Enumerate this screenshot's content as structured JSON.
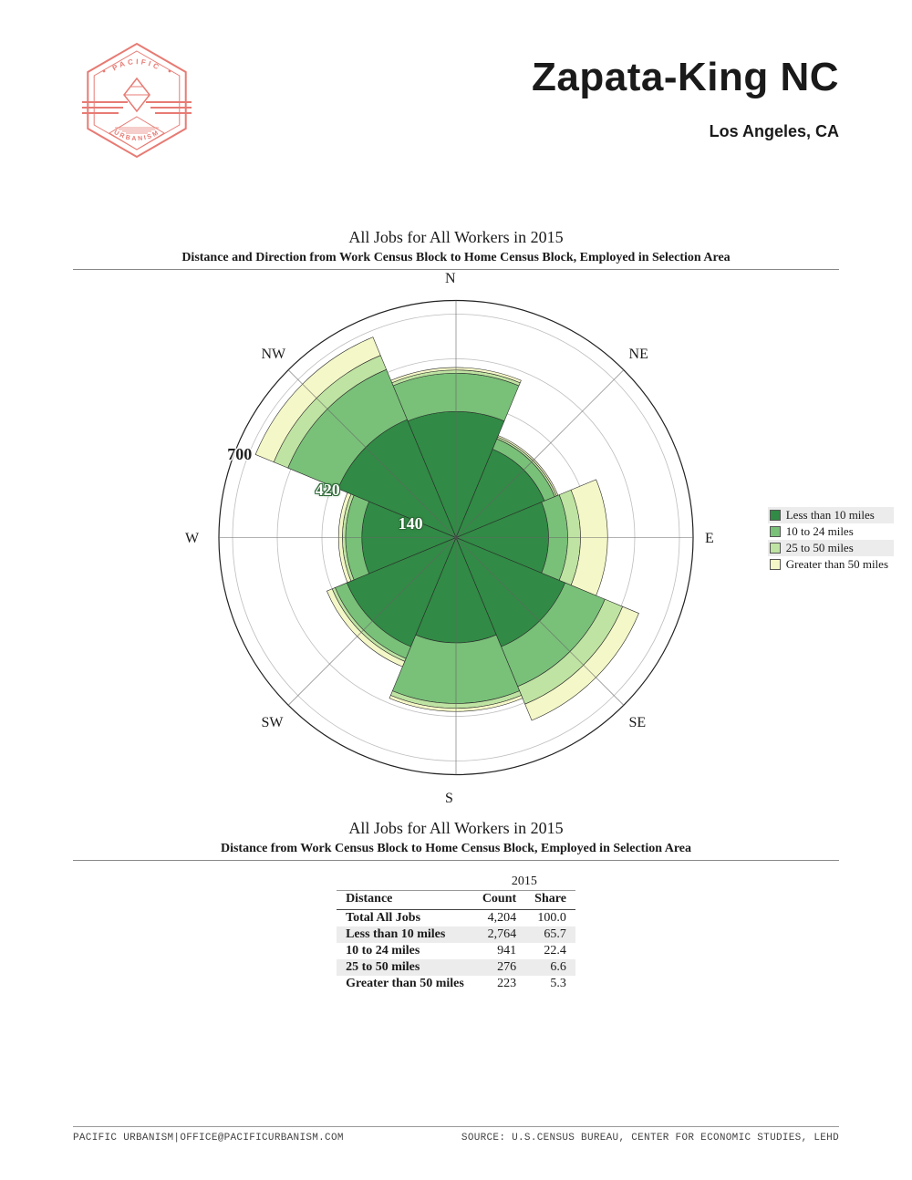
{
  "header": {
    "title": "Zapata-King NC",
    "subtitle": "Los Angeles, CA",
    "logo_color": "#e77b74",
    "logo_text_top": "PACIFIC",
    "logo_text_bottom": "URBANISM"
  },
  "chart": {
    "title": "All Jobs for All Workers in 2015",
    "subtitle": "Distance and Direction from Work Census Block to Home Census Block, Employed in Selection Area",
    "type": "polar-rose-stacked",
    "directions": [
      "N",
      "NE",
      "E",
      "SE",
      "S",
      "SW",
      "W",
      "NW"
    ],
    "r_max": 700,
    "r_ticks": [
      140,
      280,
      420,
      560,
      700
    ],
    "r_tick_labels": {
      "140": "140",
      "420": "420",
      "700": "700"
    },
    "series": [
      {
        "name": "Less than 10 miles",
        "color": "#318a45"
      },
      {
        "name": "10 to 24 miles",
        "color": "#79c079"
      },
      {
        "name": "25 to 50 miles",
        "color": "#bfe3a2"
      },
      {
        "name": "Greater than 50 miles",
        "color": "#f4f7c7"
      }
    ],
    "stacks_by_direction": {
      "N": [
        395,
        120,
        10,
        8
      ],
      "NE": [
        300,
        35,
        6,
        5
      ],
      "E": [
        290,
        60,
        40,
        85
      ],
      "SE": [
        370,
        135,
        60,
        55
      ],
      "S": [
        330,
        190,
        15,
        10
      ],
      "SW": [
        370,
        40,
        10,
        18
      ],
      "W": [
        295,
        51,
        10,
        12
      ],
      "NW": [
        400,
        170,
        48,
        62
      ]
    },
    "background_color": "#ffffff",
    "ring_grid_color": "#bdbdbd",
    "outline_color": "#222222",
    "axis_label_fontsize": 16,
    "title_fontsize": 18,
    "subtitle_fontsize": 14
  },
  "legend": {
    "items": [
      {
        "label": "Less than 10 miles",
        "color": "#318a45"
      },
      {
        "label": "10 to 24 miles",
        "color": "#79c079"
      },
      {
        "label": "25 to 50 miles",
        "color": "#bfe3a2"
      },
      {
        "label": "Greater than 50 miles",
        "color": "#f4f7c7"
      }
    ]
  },
  "table": {
    "title": "All Jobs for All Workers in 2015",
    "subtitle": "Distance from Work Census Block to Home Census Block, Employed in Selection Area",
    "year": "2015",
    "col_distance": "Distance",
    "col_count": "Count",
    "col_share": "Share",
    "rows": [
      {
        "label": "Total All Jobs",
        "count": "4,204",
        "share": "100.0"
      },
      {
        "label": "Less than 10 miles",
        "count": "2,764",
        "share": "65.7"
      },
      {
        "label": "10 to 24 miles",
        "count": "941",
        "share": "22.4"
      },
      {
        "label": "25 to 50 miles",
        "count": "276",
        "share": "6.6"
      },
      {
        "label": "Greater than 50 miles",
        "count": "223",
        "share": "5.3"
      }
    ]
  },
  "footer": {
    "left": "PACIFIC URBANISM|OFFICE@PACIFICURBANISM.COM",
    "right": "SOURCE: U.S.CENSUS BUREAU, CENTER FOR ECONOMIC STUDIES, LEHD"
  }
}
